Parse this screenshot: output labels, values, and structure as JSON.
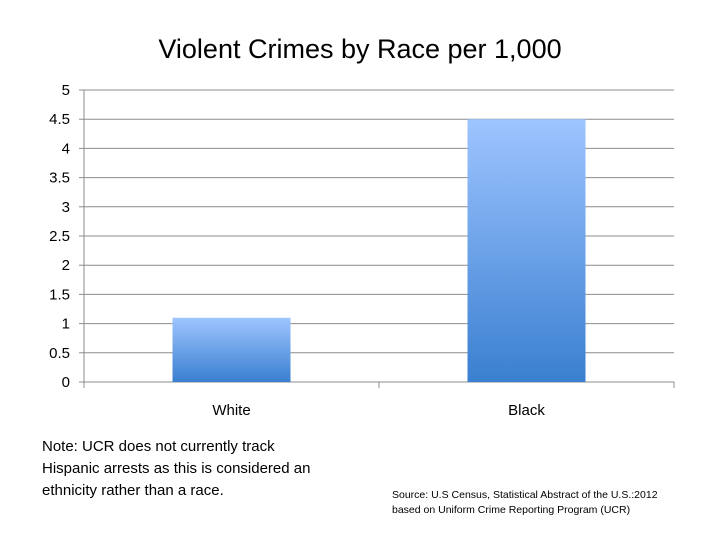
{
  "chart_data": {
    "type": "bar",
    "title": "Violent Crimes by Race per 1,000",
    "categories": [
      "White",
      "Black"
    ],
    "values": [
      1.1,
      4.5
    ],
    "ylim": [
      0,
      5
    ],
    "yticks": [
      "0",
      "0.5",
      "1",
      "1.5",
      "2",
      "2.5",
      "3",
      "3.5",
      "4",
      "4.5",
      "5"
    ],
    "xlabel": "",
    "ylabel": "",
    "grid": true,
    "legend": "none",
    "bar_color_top": "#9ec5ff",
    "bar_color_bottom": "#3a7fd0"
  },
  "note": {
    "lines": [
      "Note: UCR does not currently track",
      "Hispanic arrests as this is considered an",
      "ethnicity rather than a race."
    ]
  },
  "source": {
    "lines": [
      "Source: U.S Census, Statistical Abstract of the U.S.:2012",
      "based on Uniform Crime Reporting Program (UCR)"
    ]
  }
}
